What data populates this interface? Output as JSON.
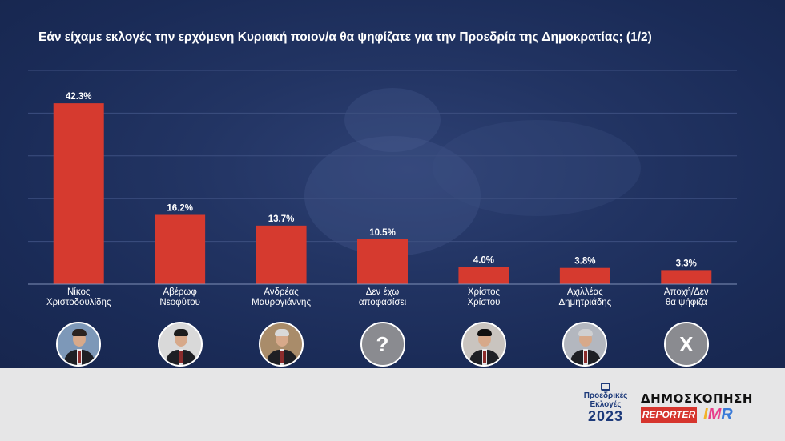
{
  "title": "Εάν είχαμε εκλογές την ερχόμενη Κυριακή ποιον/α θα ψηφίζατε για την Προεδρία της Δημοκρατίας; (1/2)",
  "colors": {
    "bar": "#d63a2f",
    "background": "#1d2f5c",
    "footer": "#e6e6e7"
  },
  "chart_data": {
    "type": "bar",
    "categories": [
      [
        "Νίκος",
        "Χριστοδουλίδης"
      ],
      [
        "Αβέρωφ",
        "Νεοφύτου"
      ],
      [
        "Ανδρέας",
        "Μαυρογιάννης"
      ],
      [
        "Δεν έχω",
        "αποφασίσει"
      ],
      [
        "Χρίστος",
        "Χρίστου"
      ],
      [
        "Αχιλλέας",
        "Δημητριάδης"
      ],
      [
        "Αποχή/Δεν",
        "θα ψήφιζα"
      ]
    ],
    "values": [
      42.3,
      16.2,
      13.7,
      10.5,
      4.0,
      3.8,
      3.3
    ],
    "value_labels": [
      "42.3%",
      "16.2%",
      "13.7%",
      "10.5%",
      "4.0%",
      "3.8%",
      "3.3%"
    ],
    "ylim": [
      0,
      50
    ],
    "grid": true,
    "legend": "none"
  },
  "avatars": [
    {
      "kind": "photo",
      "icon": "candidate-photo",
      "bg": "#7d98b8",
      "hair": "#2a2320"
    },
    {
      "kind": "photo",
      "icon": "candidate-photo",
      "bg": "#d9d9d9",
      "hair": "#1c1c1c"
    },
    {
      "kind": "photo",
      "icon": "candidate-photo",
      "bg": "#a98c6a",
      "hair": "#d9d9d9"
    },
    {
      "kind": "symbol",
      "icon": "question-mark-icon",
      "symbol": "?"
    },
    {
      "kind": "photo",
      "icon": "candidate-photo",
      "bg": "#c9c4bf",
      "hair": "#111111"
    },
    {
      "kind": "photo",
      "icon": "candidate-photo",
      "bg": "#b3b7bf",
      "hair": "#cfd0d2"
    },
    {
      "kind": "symbol",
      "icon": "x-mark-icon",
      "symbol": "X"
    }
  ],
  "footer": {
    "elections_logo": {
      "line1": "Προεδρικές",
      "line2": "Εκλογές",
      "line3": "2023"
    },
    "poll_title": "ΔΗΜΟΣΚΟΠΗΣΗ",
    "reporter_logo": "REPORTER",
    "imr_logo": {
      "c1": "I",
      "c2": "M",
      "c3": "R"
    }
  }
}
